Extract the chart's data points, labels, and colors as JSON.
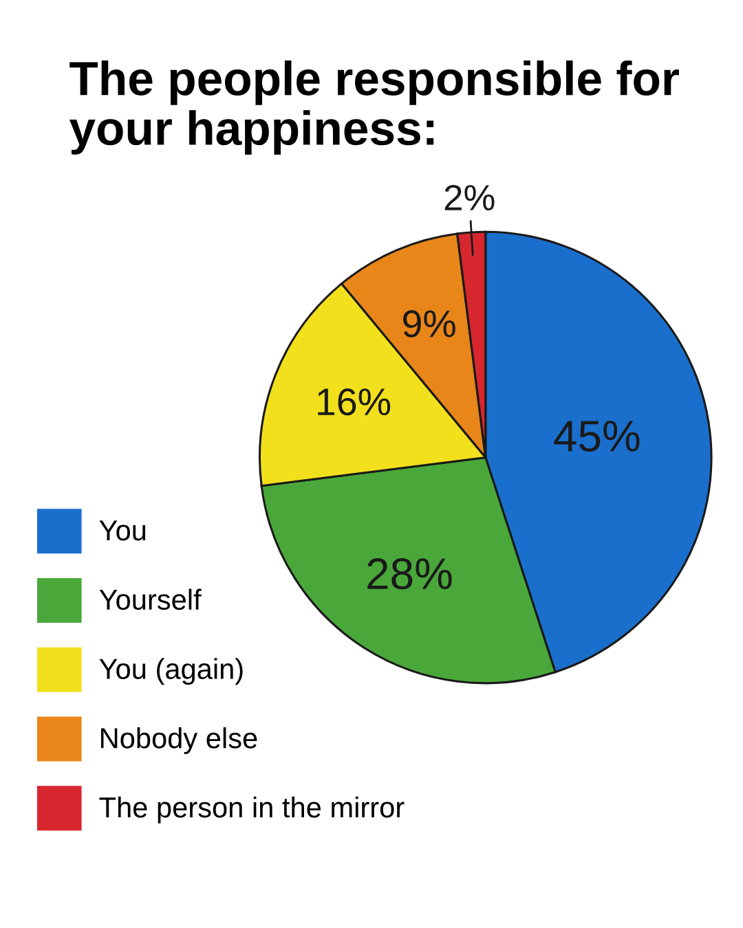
{
  "chart_data": {
    "type": "pie",
    "title": "The people responsible for your happiness:",
    "categories": [
      "You",
      "Yourself",
      "You (again)",
      "Nobody else",
      "The person in the mirror"
    ],
    "values": [
      45,
      28,
      16,
      9,
      2
    ],
    "colors": [
      "#1a6fcc",
      "#4aa83a",
      "#f2e01c",
      "#e8861a",
      "#d8262f"
    ],
    "value_labels": [
      "45%",
      "28%",
      "16%",
      "9%",
      "2%"
    ],
    "legend": "bottom left"
  }
}
